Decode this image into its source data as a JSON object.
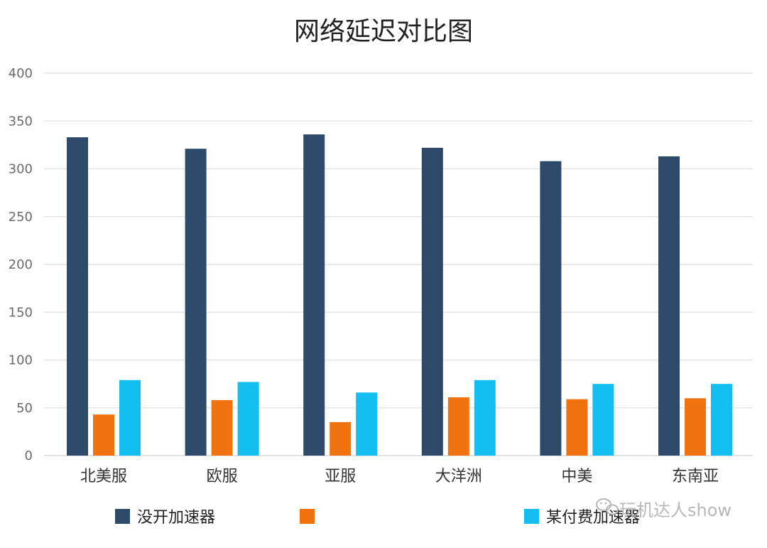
{
  "chart_data": {
    "type": "bar",
    "title": "网络延迟对比图",
    "categories": [
      "北美服",
      "欧服",
      "亚服",
      "大洋洲",
      "中美",
      "东南亚"
    ],
    "series": [
      {
        "name": "没开加速器",
        "color": "#2e4a6b",
        "values": [
          333,
          321,
          336,
          322,
          308,
          313
        ]
      },
      {
        "name": "",
        "color": "#f07310",
        "values": [
          43,
          58,
          35,
          61,
          59,
          60
        ]
      },
      {
        "name": "某付费加速器",
        "color": "#12bff0",
        "values": [
          79,
          77,
          66,
          79,
          75,
          75
        ]
      }
    ],
    "ylim": [
      0,
      400
    ],
    "yticks": [
      0,
      50,
      100,
      150,
      200,
      250,
      300,
      350,
      400
    ],
    "grid": true,
    "legend": "bottom"
  },
  "watermark": {
    "icon": "wechat-icon",
    "text": "玩机达人show"
  }
}
